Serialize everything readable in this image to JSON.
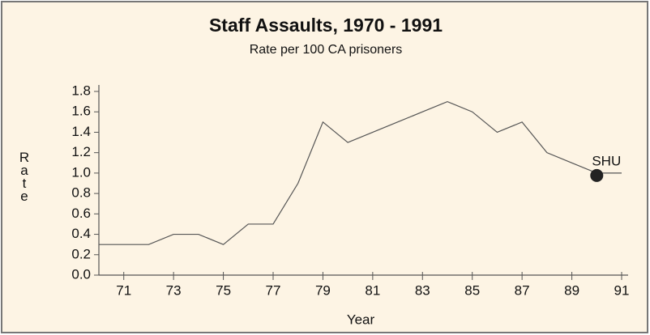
{
  "chart_data": {
    "type": "line",
    "title": "Staff Assaults, 1970 - 1991",
    "subtitle": "Rate per 100 CA prisoners",
    "x_label": "Year",
    "y_label": "Rate",
    "x": [
      70,
      71,
      72,
      73,
      74,
      75,
      76,
      77,
      78,
      79,
      80,
      81,
      82,
      83,
      84,
      85,
      86,
      87,
      88,
      89,
      90,
      91
    ],
    "series": [
      {
        "name": "Staff assaults",
        "color": "#555555",
        "values": [
          0.3,
          0.3,
          0.3,
          0.4,
          0.4,
          0.3,
          0.5,
          0.5,
          0.9,
          1.5,
          1.3,
          1.4,
          1.5,
          1.6,
          1.7,
          1.6,
          1.4,
          1.5,
          1.2,
          1.1,
          1.0,
          1.0
        ]
      }
    ],
    "xlim": [
      70,
      91
    ],
    "xticks": [
      71,
      73,
      75,
      77,
      79,
      81,
      83,
      85,
      87,
      89,
      91
    ],
    "ylim": [
      0,
      1.8
    ],
    "yticks": [
      {
        "value": 0,
        "label": "0.0"
      },
      0.2,
      0.4,
      0.6,
      0.8,
      {
        "value": 1,
        "label": "1.0"
      },
      1.2,
      1.4,
      1.6,
      1.8
    ],
    "annotations": [
      {
        "text": "SHU",
        "x": 90,
        "y": 1.0
      }
    ],
    "grid": false
  }
}
